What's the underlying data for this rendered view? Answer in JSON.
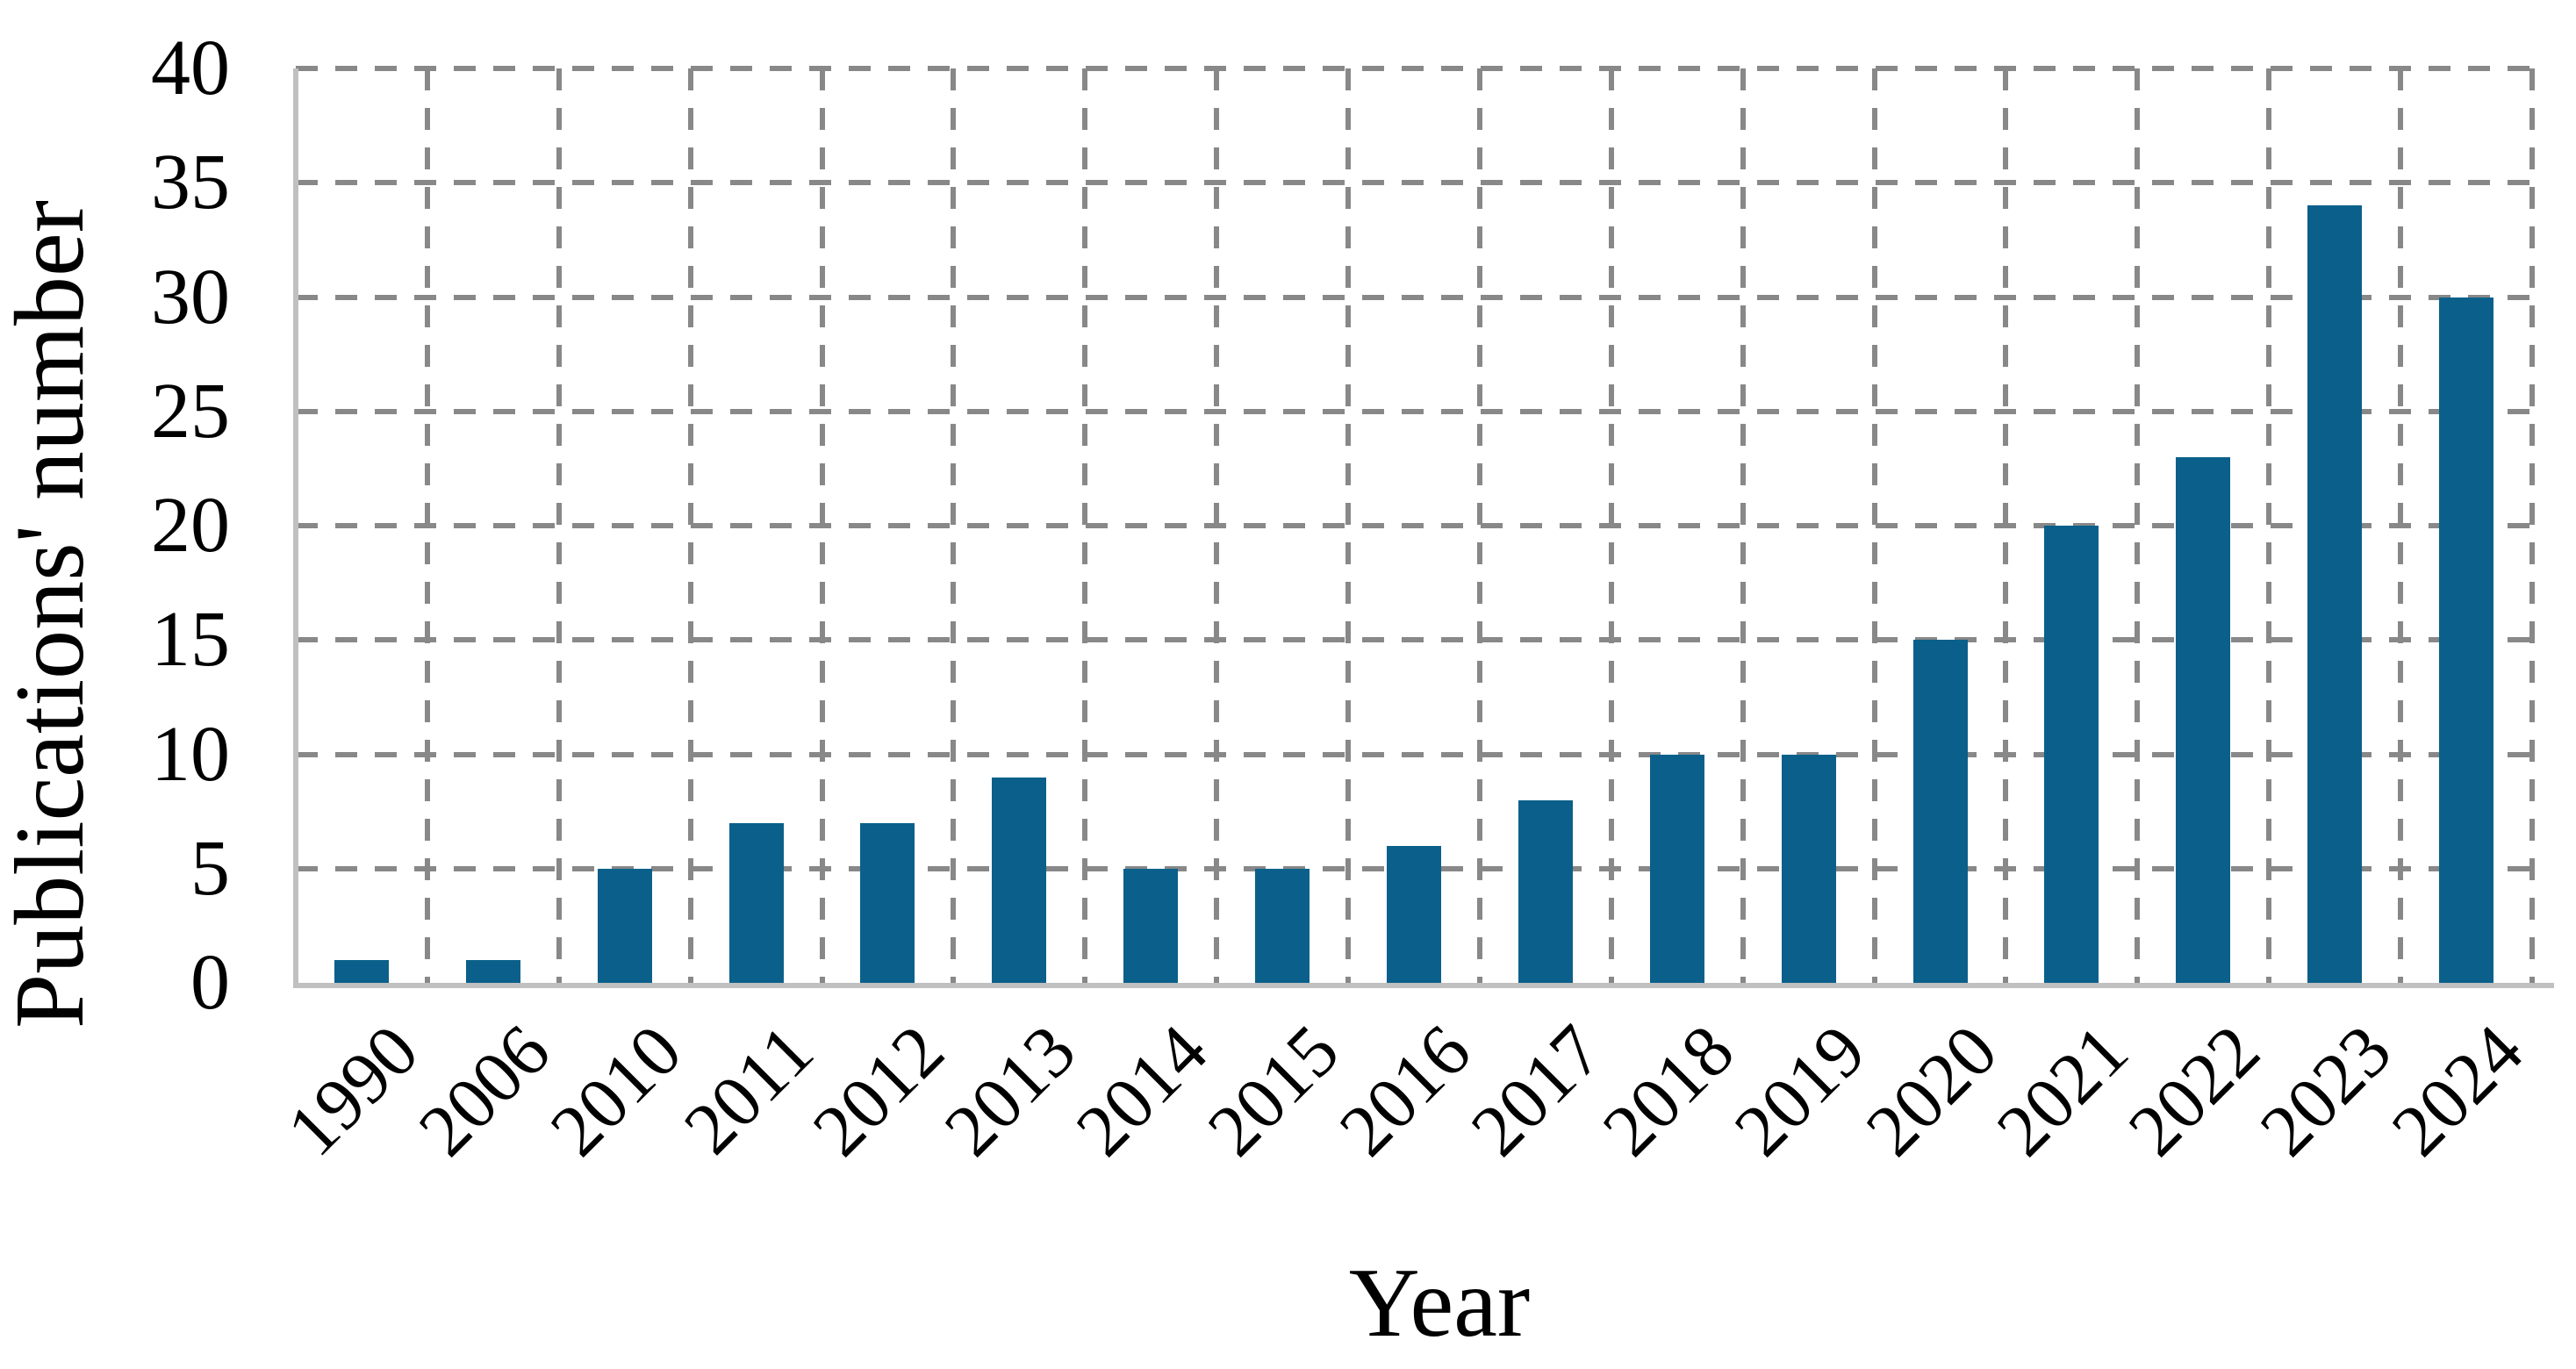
{
  "chart_data": {
    "type": "bar",
    "title": "",
    "categories": [
      "1990",
      "2006",
      "2010",
      "2011",
      "2012",
      "2013",
      "2014",
      "2015",
      "2016",
      "2017",
      "2018",
      "2019",
      "2020",
      "2021",
      "2022",
      "2023",
      "2024"
    ],
    "values": [
      1,
      1,
      5,
      7,
      7,
      9,
      5,
      5,
      6,
      8,
      10,
      10,
      15,
      20,
      23,
      34,
      30
    ],
    "xlabel": "Year",
    "ylabel": "Publications' number",
    "ylim": [
      0,
      40
    ],
    "yticks": [
      0,
      5,
      10,
      15,
      20,
      25,
      30,
      35,
      40
    ],
    "grid": "dashed-both-directions",
    "legend_position": "none",
    "colors": {
      "bar": "#0A608A",
      "gridline": "#888888",
      "axis_line": "#C0C0C0",
      "text": "#000000",
      "background": "#FFFFFF"
    }
  }
}
